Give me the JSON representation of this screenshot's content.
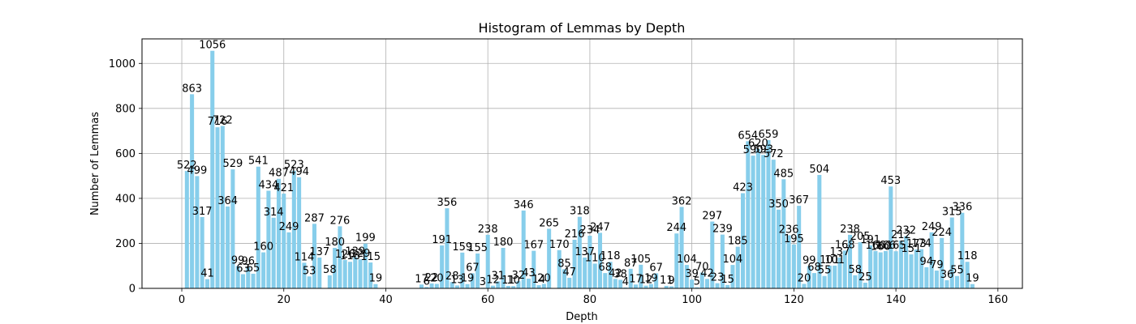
{
  "chart_data": {
    "type": "bar",
    "title": "Histogram of Lemmas by Depth",
    "xlabel": "Depth",
    "ylabel": "Number of Lemmas",
    "xlim": [
      -7.8,
      164.8
    ],
    "ylim": [
      0,
      1109
    ],
    "xticks": [
      0,
      20,
      40,
      60,
      80,
      100,
      120,
      140,
      160
    ],
    "yticks": [
      0,
      200,
      400,
      600,
      800,
      1000
    ],
    "grid": true,
    "bar_color": "#87CEEB",
    "points": [
      [
        1,
        522
      ],
      [
        2,
        863
      ],
      [
        3,
        499
      ],
      [
        4,
        317
      ],
      [
        5,
        41
      ],
      [
        6,
        1056
      ],
      [
        7,
        716
      ],
      [
        8,
        722
      ],
      [
        9,
        364
      ],
      [
        10,
        529
      ],
      [
        11,
        99
      ],
      [
        12,
        63
      ],
      [
        13,
        96
      ],
      [
        14,
        65
      ],
      [
        15,
        541
      ],
      [
        16,
        160
      ],
      [
        17,
        434
      ],
      [
        18,
        314
      ],
      [
        19,
        487
      ],
      [
        20,
        421
      ],
      [
        21,
        249
      ],
      [
        22,
        523
      ],
      [
        23,
        494
      ],
      [
        24,
        114
      ],
      [
        25,
        53
      ],
      [
        26,
        287
      ],
      [
        27,
        137
      ],
      [
        29,
        58
      ],
      [
        30,
        180
      ],
      [
        31,
        276
      ],
      [
        32,
        126
      ],
      [
        33,
        118
      ],
      [
        34,
        139
      ],
      [
        35,
        129
      ],
      [
        36,
        199
      ],
      [
        37,
        115
      ],
      [
        38,
        19
      ],
      [
        47,
        17
      ],
      [
        48,
        6
      ],
      [
        49,
        22
      ],
      [
        50,
        20
      ],
      [
        51,
        191
      ],
      [
        52,
        356
      ],
      [
        53,
        28
      ],
      [
        54,
        13
      ],
      [
        55,
        159
      ],
      [
        56,
        19
      ],
      [
        57,
        67
      ],
      [
        58,
        155
      ],
      [
        59,
        3
      ],
      [
        60,
        238
      ],
      [
        61,
        12
      ],
      [
        62,
        31
      ],
      [
        63,
        180
      ],
      [
        64,
        11
      ],
      [
        65,
        10
      ],
      [
        66,
        32
      ],
      [
        67,
        346
      ],
      [
        68,
        43
      ],
      [
        69,
        167
      ],
      [
        70,
        14
      ],
      [
        71,
        20
      ],
      [
        72,
        265
      ],
      [
        74,
        170
      ],
      [
        75,
        85
      ],
      [
        76,
        47
      ],
      [
        77,
        216
      ],
      [
        78,
        318
      ],
      [
        79,
        137
      ],
      [
        80,
        234
      ],
      [
        81,
        110
      ],
      [
        82,
        247
      ],
      [
        83,
        68
      ],
      [
        84,
        118
      ],
      [
        85,
        42
      ],
      [
        86,
        38
      ],
      [
        87,
        4
      ],
      [
        88,
        87
      ],
      [
        89,
        17
      ],
      [
        90,
        105
      ],
      [
        91,
        12
      ],
      [
        92,
        19
      ],
      [
        93,
        67
      ],
      [
        95,
        11
      ],
      [
        96,
        9
      ],
      [
        97,
        244
      ],
      [
        98,
        362
      ],
      [
        99,
        104
      ],
      [
        100,
        39
      ],
      [
        101,
        5
      ],
      [
        102,
        70
      ],
      [
        103,
        42
      ],
      [
        104,
        297
      ],
      [
        105,
        23
      ],
      [
        106,
        239
      ],
      [
        107,
        15
      ],
      [
        108,
        104
      ],
      [
        109,
        185
      ],
      [
        110,
        423
      ],
      [
        111,
        654
      ],
      [
        112,
        590
      ],
      [
        113,
        620
      ],
      [
        114,
        593
      ],
      [
        115,
        659
      ],
      [
        116,
        572
      ],
      [
        117,
        350
      ],
      [
        118,
        485
      ],
      [
        119,
        236
      ],
      [
        120,
        195
      ],
      [
        121,
        367
      ],
      [
        122,
        20
      ],
      [
        123,
        99
      ],
      [
        124,
        68
      ],
      [
        125,
        504
      ],
      [
        126,
        55
      ],
      [
        127,
        101
      ],
      [
        128,
        101
      ],
      [
        129,
        137
      ],
      [
        130,
        168
      ],
      [
        131,
        238
      ],
      [
        132,
        58
      ],
      [
        133,
        205
      ],
      [
        134,
        25
      ],
      [
        135,
        191
      ],
      [
        136,
        166
      ],
      [
        137,
        160
      ],
      [
        138,
        166
      ],
      [
        139,
        453
      ],
      [
        140,
        165
      ],
      [
        141,
        212
      ],
      [
        142,
        232
      ],
      [
        143,
        151
      ],
      [
        144,
        173
      ],
      [
        145,
        174
      ],
      [
        146,
        94
      ],
      [
        147,
        249
      ],
      [
        148,
        79
      ],
      [
        149,
        224
      ],
      [
        150,
        36
      ],
      [
        151,
        315
      ],
      [
        152,
        55
      ],
      [
        153,
        336
      ],
      [
        154,
        118
      ],
      [
        155,
        19
      ]
    ]
  }
}
